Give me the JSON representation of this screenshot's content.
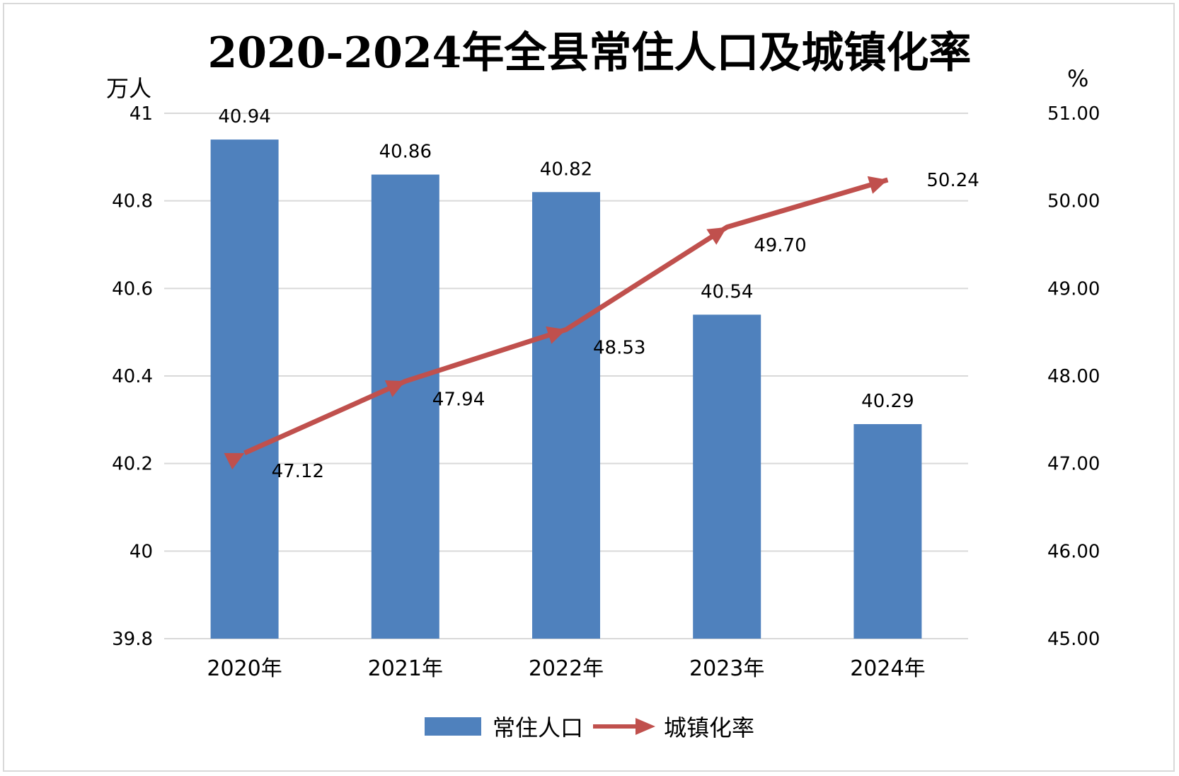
{
  "chart_data": {
    "type": "bar",
    "title": "2020-2024年全县常住人口及城镇化率",
    "categories": [
      "2020年",
      "2021年",
      "2022年",
      "2023年",
      "2024年"
    ],
    "series": [
      {
        "name": "常住人口",
        "type": "bar",
        "axis": "left",
        "values": [
          40.94,
          40.86,
          40.82,
          40.54,
          40.29
        ],
        "labels": [
          "40.94",
          "40.86",
          "40.82",
          "40.54",
          "40.29"
        ],
        "color": "#4f81bd"
      },
      {
        "name": "城镇化率",
        "type": "line",
        "axis": "right",
        "values": [
          47.12,
          47.94,
          48.53,
          49.7,
          50.24
        ],
        "labels": [
          "47.12",
          "47.94",
          "48.53",
          "49.70",
          "50.24"
        ],
        "color": "#c0504d"
      }
    ],
    "y_left": {
      "label": "万人",
      "ylim": [
        39.8,
        41
      ],
      "ticks": [
        "39.8",
        "40",
        "40.2",
        "40.4",
        "40.6",
        "40.8",
        "41"
      ]
    },
    "y_right": {
      "label": "%",
      "ylim": [
        45,
        51
      ],
      "ticks": [
        "45.00",
        "46.00",
        "47.00",
        "48.00",
        "49.00",
        "50.00",
        "51.00"
      ]
    },
    "grid": true,
    "legend_position": "bottom"
  }
}
